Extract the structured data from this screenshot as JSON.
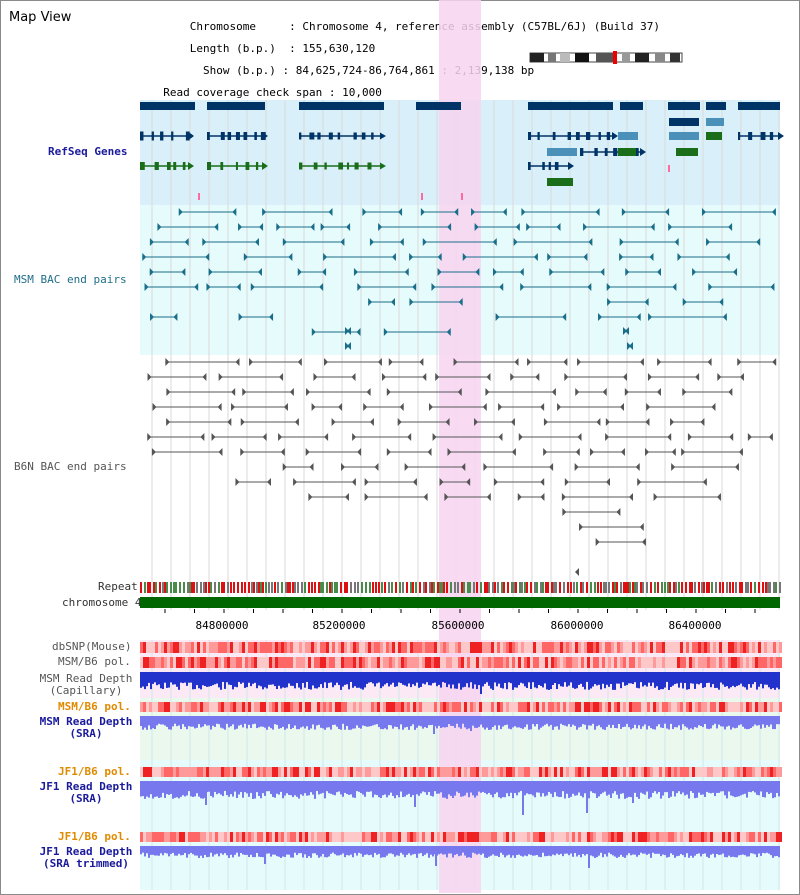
{
  "header": {
    "title": "Map View",
    "chromosome_label": "Chromosome",
    "chromosome_value": "Chromosome 4, reference assembly (C57BL/6J) (Build 37)",
    "length_label": "Length (b.p.)",
    "length_value": "155,630,120",
    "show_label": "Show (b.p.)",
    "show_value": "84,625,724-86,764,861 : 2,139,138 bp",
    "coverage_label": "Read coverage check span",
    "coverage_value": "10,000"
  },
  "tracks": {
    "refseq": "RefSeq Genes",
    "msm_bac": "MSM BAC end pairs",
    "b6n_bac": "B6N BAC end pairs",
    "repeat": "Repeat",
    "chromosome": "chromosome 4",
    "dbsnp": "dbSNP(Mouse)",
    "msm_b6_pol": "MSM/B6 pol.",
    "msm_depth_cap_1": "MSM Read Depth",
    "msm_depth_cap_2": "(Capillary)",
    "msm_b6_pol_sra": "MSM/B6 pol.",
    "msm_depth_sra_1": "MSM Read Depth",
    "msm_depth_sra_2": "(SRA)",
    "jf1_pol": "JF1/B6 pol.",
    "jf1_depth_1": "JF1 Read Depth",
    "jf1_depth_2": "(SRA)",
    "jf1_pol_trim": "JF1/B6 pol.",
    "jf1_depth_trim_1": "JF1 Read Depth",
    "jf1_depth_trim_2": "(SRA trimmed)"
  },
  "axis": {
    "ticks": [
      "84800000",
      "85200000",
      "85600000",
      "86000000",
      "86400000"
    ]
  },
  "colors": {
    "highlight": "#f7d4f0",
    "refseq_bg": "#d9f0fa",
    "bac_bg": "#e6fbfb",
    "gene_dark": "#003366",
    "gene_mid": "#4a90b8",
    "gene_green": "#1a6e1a",
    "bac_teal": "#1a6e8a",
    "bac_gray": "#555555",
    "chrom_green": "#006600",
    "snp_red": "#ff6060",
    "depth_blue": "#2233cc",
    "depth_lavender": "#7777ee"
  }
}
